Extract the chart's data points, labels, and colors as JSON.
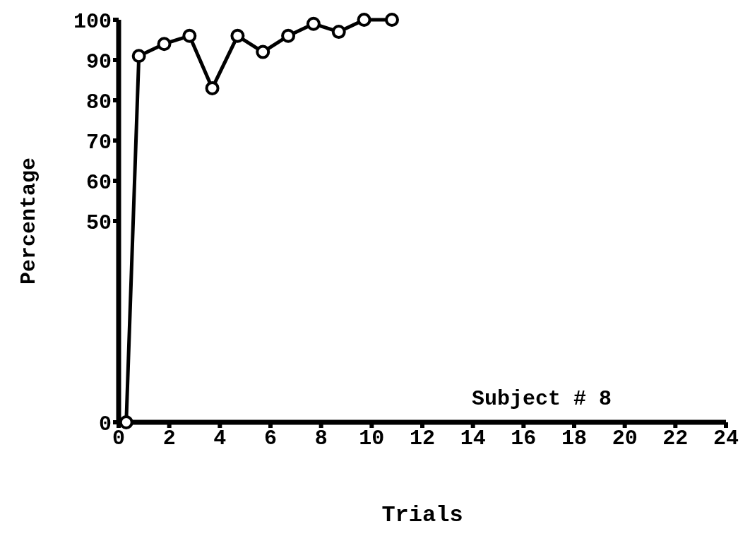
{
  "chart_data": {
    "type": "line",
    "xlabel": "Trials",
    "ylabel": "Percentage",
    "annotations": [
      "Subject # 8"
    ],
    "x": [
      0.3,
      0.8,
      1.8,
      2.8,
      3.7,
      4.7,
      5.7,
      6.7,
      7.7,
      8.7,
      9.7,
      10.8
    ],
    "series": [
      {
        "color": "#000000",
        "values": [
          0,
          91,
          94,
          96,
          83,
          96,
          92,
          96,
          99,
          97,
          100,
          100
        ]
      }
    ],
    "xlim": [
      0,
      24
    ],
    "xticks": [
      0,
      2,
      4,
      6,
      8,
      10,
      12,
      14,
      16,
      18,
      20,
      22,
      24
    ],
    "ylim": [
      0,
      100
    ],
    "yticks": [
      0,
      50,
      60,
      70,
      80,
      90,
      100
    ],
    "grid": false,
    "legend": false,
    "marker": "circle",
    "line_style": "solid"
  }
}
